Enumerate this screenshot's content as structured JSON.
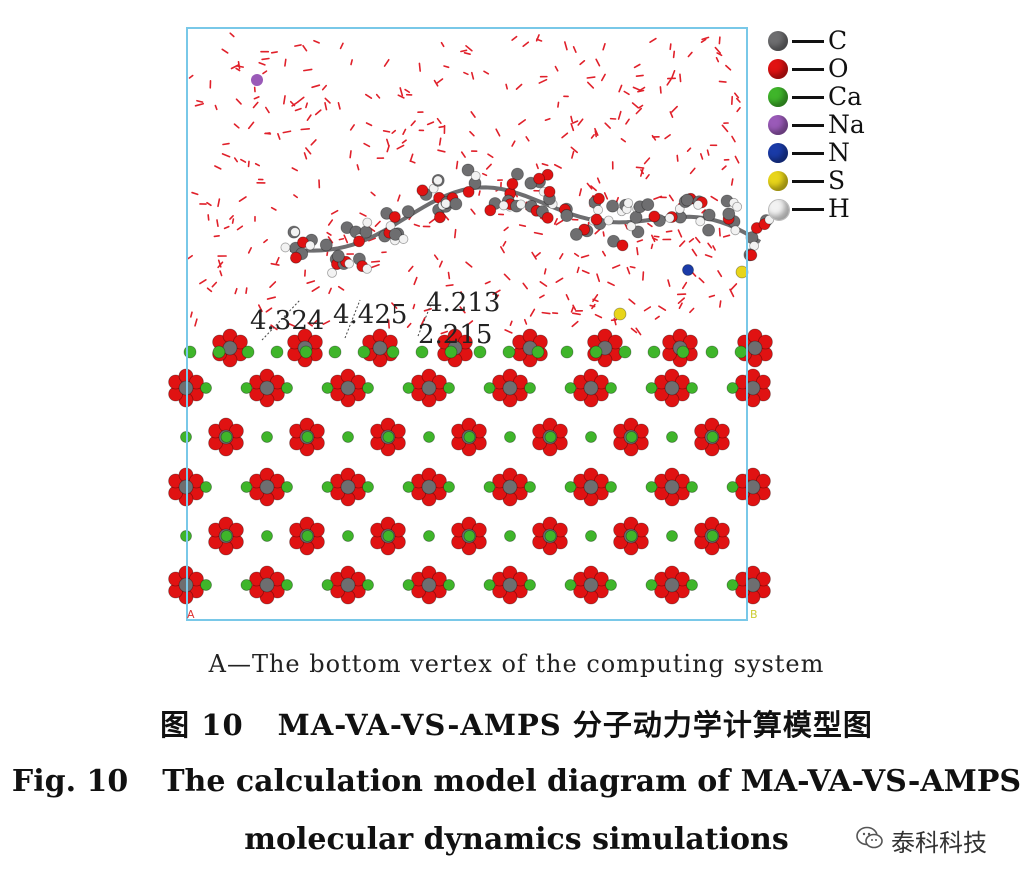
{
  "legend": [
    {
      "element": "C",
      "color": "#6e6e70"
    },
    {
      "element": "O",
      "color": "#e01212"
    },
    {
      "element": "Ca",
      "color": "#3fb52a"
    },
    {
      "element": "Na",
      "color": "#9a5ab8"
    },
    {
      "element": "N",
      "color": "#1a3ba8"
    },
    {
      "element": "S",
      "color": "#e8d51a"
    },
    {
      "element": "H",
      "color": "#f2f2f2"
    }
  ],
  "distances": [
    "4.324",
    "4.425",
    "4.213",
    "2.215"
  ],
  "corner_labels": {
    "a": "A",
    "b": "B"
  },
  "caption_a": "A—The bottom vertex of the computing system",
  "figure_cn": {
    "number": "图 10",
    "title": "MA-VA-VS-AMPS 分子动力学计算模型图"
  },
  "figure_en": {
    "number": "Fig. 10",
    "title_line1": "The calculation model diagram of MA-VA-VS-AMPS",
    "title_line2": "molecular dynamics simulations"
  },
  "watermark": "泰科科技",
  "colors": {
    "box": "#79c8e8",
    "water": "#e0202a",
    "carbon": "#6e6e70",
    "oxygen": "#e01212",
    "calcium": "#3fb52a"
  }
}
